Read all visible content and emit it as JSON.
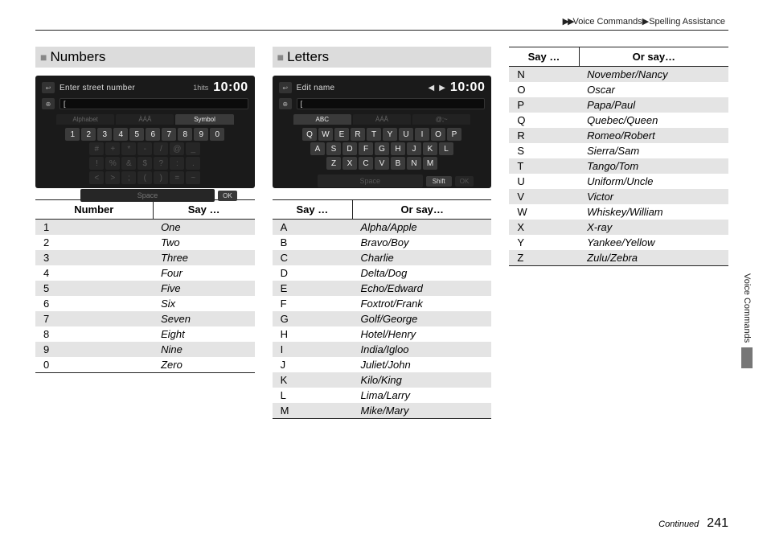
{
  "breadcrumb": {
    "arrows": "▶▶",
    "a": "Voice Commands",
    "sep": "▶",
    "b": "Spelling Assistance"
  },
  "sections": {
    "numbers": "Numbers",
    "letters": "Letters"
  },
  "screen_numbers": {
    "title": "Enter street number",
    "hits": "1hits",
    "clock": "10:00",
    "field": "[",
    "tabs": [
      "Alphabet",
      "ÀÁÂ",
      "Symbol"
    ],
    "active_tab": 2,
    "rows": [
      [
        "1",
        "2",
        "3",
        "4",
        "5",
        "6",
        "7",
        "8",
        "9",
        "0"
      ],
      [
        "#",
        "+",
        "*",
        "-",
        "/",
        "@",
        "_"
      ],
      [
        "!",
        "%",
        "&",
        "$",
        "?",
        ":",
        "."
      ],
      [
        "<",
        ">",
        ";",
        "(",
        ")",
        "=",
        "~"
      ]
    ],
    "space": "Space",
    "ok": "OK"
  },
  "screen_letters": {
    "title": "Edit name",
    "clock": "10:00",
    "field": "[",
    "tabs": [
      "ABC",
      "ÀÁÂ",
      "@;~"
    ],
    "active_tab": 0,
    "rows": [
      [
        "Q",
        "W",
        "E",
        "R",
        "T",
        "Y",
        "U",
        "I",
        "O",
        "P"
      ],
      [
        "A",
        "S",
        "D",
        "F",
        "G",
        "H",
        "J",
        "K",
        "L"
      ],
      [
        "Z",
        "X",
        "C",
        "V",
        "B",
        "N",
        "M"
      ]
    ],
    "space": "Space",
    "shift": "Shift",
    "ok": "OK"
  },
  "table_numbers": {
    "headers": [
      "Number",
      "Say …"
    ],
    "rows": [
      [
        "1",
        "One"
      ],
      [
        "2",
        "Two"
      ],
      [
        "3",
        "Three"
      ],
      [
        "4",
        "Four"
      ],
      [
        "5",
        "Five"
      ],
      [
        "6",
        "Six"
      ],
      [
        "7",
        "Seven"
      ],
      [
        "8",
        "Eight"
      ],
      [
        "9",
        "Nine"
      ],
      [
        "0",
        "Zero"
      ]
    ]
  },
  "table_lettersA": {
    "headers": [
      "Say …",
      "Or say…"
    ],
    "rows": [
      [
        "A",
        "Alpha/Apple"
      ],
      [
        "B",
        "Bravo/Boy"
      ],
      [
        "C",
        "Charlie"
      ],
      [
        "D",
        "Delta/Dog"
      ],
      [
        "E",
        "Echo/Edward"
      ],
      [
        "F",
        "Foxtrot/Frank"
      ],
      [
        "G",
        "Golf/George"
      ],
      [
        "H",
        "Hotel/Henry"
      ],
      [
        "I",
        "India/Igloo"
      ],
      [
        "J",
        "Juliet/John"
      ],
      [
        "K",
        "Kilo/King"
      ],
      [
        "L",
        "Lima/Larry"
      ],
      [
        "M",
        "Mike/Mary"
      ]
    ]
  },
  "table_lettersB": {
    "headers": [
      "Say …",
      "Or say…"
    ],
    "rows": [
      [
        "N",
        "November/Nancy"
      ],
      [
        "O",
        "Oscar"
      ],
      [
        "P",
        "Papa/Paul"
      ],
      [
        "Q",
        "Quebec/Queen"
      ],
      [
        "R",
        "Romeo/Robert"
      ],
      [
        "S",
        "Sierra/Sam"
      ],
      [
        "T",
        "Tango/Tom"
      ],
      [
        "U",
        "Uniform/Uncle"
      ],
      [
        "V",
        "Victor"
      ],
      [
        "W",
        "Whiskey/William"
      ],
      [
        "X",
        "X-ray"
      ],
      [
        "Y",
        "Yankee/Yellow"
      ],
      [
        "Z",
        "Zulu/Zebra"
      ]
    ]
  },
  "side": "Voice Commands",
  "footer": {
    "cont": "Continued",
    "page": "241"
  }
}
